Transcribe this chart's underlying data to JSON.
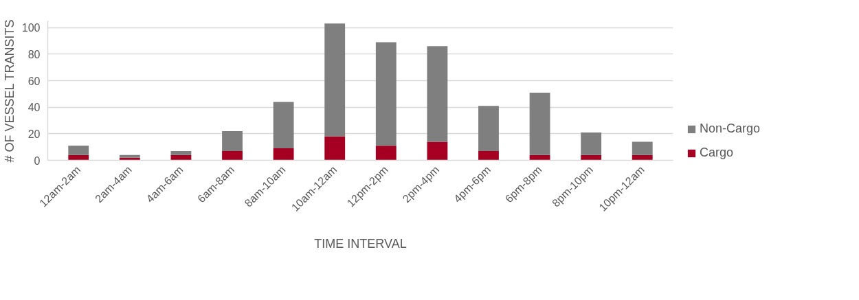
{
  "chart_data": {
    "type": "bar",
    "stacked": true,
    "xlabel": "TIME INTERVAL",
    "ylabel": "# OF VESSEL TRANSITS",
    "categories": [
      "12am-2am",
      "2am-4am",
      "4am-6am",
      "6am-8am",
      "8am-10am",
      "10am-12am",
      "12pm-2pm",
      "2pm-4pm",
      "4pm-6pm",
      "6pm-8pm",
      "8pm-10pm",
      "10pm-12am"
    ],
    "series": [
      {
        "name": "Cargo",
        "color": "#a50021",
        "values": [
          4,
          2,
          4,
          7,
          9,
          18,
          11,
          14,
          7,
          4,
          4,
          4
        ]
      },
      {
        "name": "Non-Cargo",
        "color": "#7f7f7f",
        "values": [
          7,
          2,
          3,
          15,
          35,
          85,
          78,
          72,
          34,
          47,
          17,
          10
        ]
      }
    ],
    "ylim": [
      0,
      105
    ],
    "yticks": [
      0,
      20,
      40,
      60,
      80,
      100
    ],
    "grid": "y",
    "legend": "right"
  }
}
